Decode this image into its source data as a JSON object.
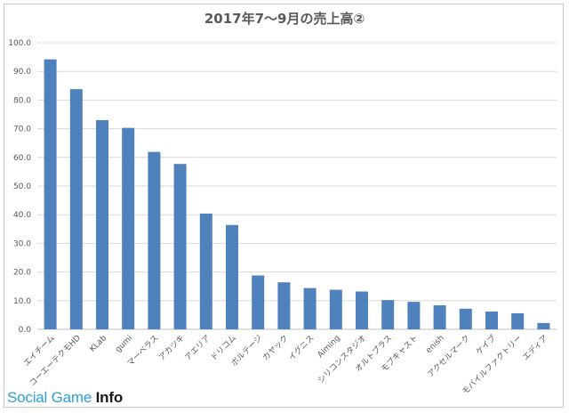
{
  "chart_data": {
    "type": "bar",
    "title": "2017年7〜9月の売上高②",
    "xlabel": "",
    "ylabel": "",
    "ylim": [
      0,
      100
    ],
    "yticks": [
      "0.0",
      "10.0",
      "20.0",
      "30.0",
      "40.0",
      "50.0",
      "60.0",
      "70.0",
      "80.0",
      "90.0",
      "100.0"
    ],
    "grid": true,
    "legend": "none",
    "bar_color": "#4f81bd",
    "categories": [
      "エイチーム",
      "コーエーテクモHD",
      "KLab",
      "gumi",
      "マーベラス",
      "アカツキ",
      "アエリア",
      "ドリコム",
      "ボルテージ",
      "カヤック",
      "イグニス",
      "Aiming",
      "シリコンスタジオ",
      "オルトプラス",
      "モブキャスト",
      "enish",
      "アクセルマーク",
      "ケイブ",
      "モバイルファクトリー",
      "エディア"
    ],
    "values": [
      94.2,
      83.8,
      73.0,
      70.3,
      61.9,
      57.7,
      40.4,
      36.4,
      18.8,
      16.4,
      14.4,
      13.8,
      13.2,
      10.2,
      9.6,
      8.4,
      7.2,
      6.2,
      5.6,
      2.2
    ]
  },
  "brand": {
    "social": "Social Game ",
    "info": "Info"
  }
}
